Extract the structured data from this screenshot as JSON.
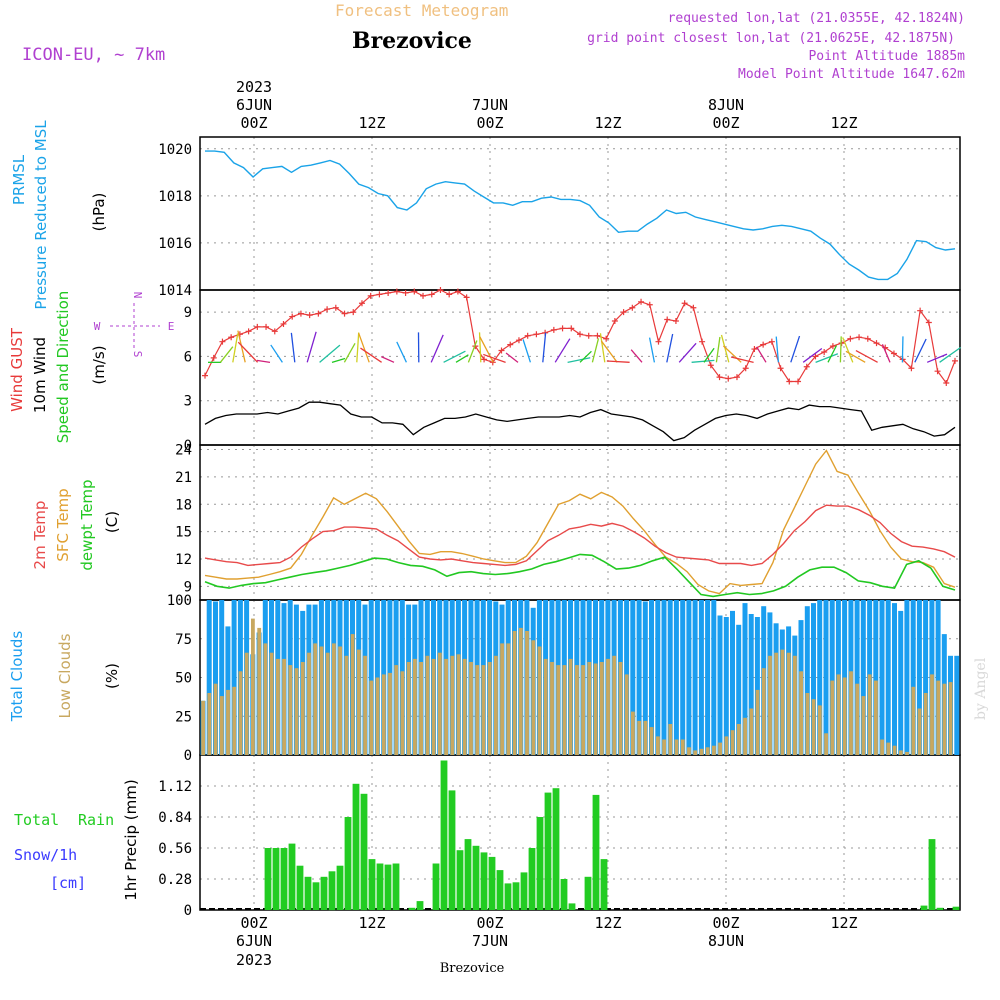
{
  "header": {
    "subtitle_top": "Forecast Meteogram",
    "model": "ICON-EU, ~ 7km",
    "location": "Brezovice",
    "requested": "requested lon,lat (21.0355E, 42.1824N)",
    "gridpoint": "grid point closest lon,lat (21.0625E, 42.1875N)",
    "point_alt": "Point Altitude 1885m",
    "model_alt": "Model Point Altitude 1647.62m",
    "watermark": "by Angel",
    "bottom_label": "Brezovice"
  },
  "time_axis": {
    "year": "2023",
    "top_days": [
      "6JUN",
      "7JUN",
      "8JUN"
    ],
    "hour_labels": [
      "00Z",
      "12Z",
      "00Z",
      "12Z",
      "00Z",
      "12Z"
    ],
    "bottom_days": [
      "6JUN",
      "7JUN",
      "8JUN"
    ]
  },
  "colors": {
    "pressure": "#1aa3e8",
    "gust": "#e83a3a",
    "wind": "#000000",
    "temp2m": "#e84a4a",
    "sfc": "#e0a030",
    "dewpt": "#22c822",
    "total_clouds": "#1a9ef0",
    "low_clouds": "#c8a860",
    "rain": "#22cc22",
    "snow": "#3a3aff",
    "title_orange": "#f0c080",
    "purple": "#b040d0"
  },
  "panel_labels": {
    "prmsl_a": "PRMSL",
    "prmsl_b": "Pressure Reduced to MSL",
    "prmsl_unit": "(hPa)",
    "wind_a": "Wind GUST",
    "wind_b": "10m Wind",
    "wind_c": "Speed and Direction",
    "wind_unit": "(m/s)",
    "compass_n": "N",
    "compass_s": "S",
    "compass_w": "W",
    "compass_e": "E",
    "temp_a": "2m Temp",
    "temp_b": "SFC Temp",
    "temp_c": "dewpt Temp",
    "temp_unit": "(C)",
    "cloud_a": "Total Clouds",
    "cloud_b": "Low Clouds",
    "cloud_unit": "(%)",
    "rain_a": "Total",
    "rain_b": "Rain",
    "rain_c": "Snow/1h",
    "rain_d": "[cm]",
    "rain_unit": "1hr Precip (mm)"
  },
  "chart_data": [
    {
      "type": "line",
      "name": "prmsl",
      "ylim": [
        1014,
        1020.5
      ],
      "yticks": [
        "1014",
        "1016",
        "1018",
        "1020"
      ],
      "series": [
        {
          "values": [
            1019.9,
            1019.9,
            1019.85,
            1019.4,
            1019.2,
            1018.8,
            1019.15,
            1019.2,
            1019.25,
            1019.0,
            1019.25,
            1019.3,
            1019.4,
            1019.5,
            1019.35,
            1018.95,
            1018.5,
            1018.35,
            1018.1,
            1018.0,
            1017.5,
            1017.4,
            1017.7,
            1018.3,
            1018.5,
            1018.6,
            1018.55,
            1018.5,
            1018.2,
            1017.95,
            1017.7,
            1017.7,
            1017.6,
            1017.75,
            1017.75,
            1017.9,
            1017.95,
            1017.85,
            1017.85,
            1017.8,
            1017.6,
            1017.1,
            1016.85,
            1016.45,
            1016.5,
            1016.5,
            1016.8,
            1017.05,
            1017.4,
            1017.25,
            1017.3,
            1017.1,
            1017.0,
            1016.9,
            1016.8,
            1016.7,
            1016.6,
            1016.55,
            1016.6,
            1016.7,
            1016.75,
            1016.7,
            1016.6,
            1016.5,
            1016.2,
            1015.95,
            1015.5,
            1015.1,
            1014.85,
            1014.55,
            1014.45,
            1014.45,
            1014.7,
            1015.3,
            1016.1,
            1016.05,
            1015.8,
            1015.7,
            1015.75
          ]
        }
      ]
    },
    {
      "type": "line",
      "name": "wind",
      "ylim": [
        0,
        10.5
      ],
      "yticks": [
        "0",
        "3",
        "6",
        "9"
      ],
      "series": [
        {
          "name": "Wind GUST",
          "values": [
            4.7,
            5.9,
            7.0,
            7.3,
            7.5,
            7.7,
            8.0,
            8.0,
            7.7,
            8.2,
            8.7,
            8.9,
            8.8,
            8.9,
            9.2,
            9.3,
            8.9,
            9.0,
            9.6,
            10.1,
            10.2,
            10.3,
            10.4,
            10.3,
            10.4,
            10.1,
            10.2,
            10.5,
            10.2,
            10.4,
            10.0,
            6.7,
            5.8,
            5.6,
            6.4,
            6.8,
            7.1,
            7.4,
            7.5,
            7.6,
            7.8,
            7.9,
            7.9,
            7.5,
            7.4,
            7.4,
            7.2,
            8.4,
            9.0,
            9.3,
            9.7,
            9.5,
            7.0,
            8.5,
            8.4,
            9.6,
            9.3,
            7.0,
            5.4,
            4.6,
            4.5,
            4.6,
            5.2,
            6.5,
            6.8,
            7.0,
            5.2,
            4.3,
            4.3,
            5.3,
            6.0,
            6.3,
            6.7,
            6.9,
            7.2,
            7.3,
            7.2,
            6.9,
            6.6,
            6.2,
            5.8,
            5.2,
            9.1,
            8.3,
            5.0,
            4.2,
            5.7
          ]
        },
        {
          "name": "10m Wind",
          "values": [
            1.4,
            1.8,
            2.0,
            2.1,
            2.1,
            2.1,
            2.2,
            2.1,
            2.3,
            2.5,
            2.9,
            2.9,
            2.8,
            2.7,
            2.1,
            1.9,
            1.9,
            1.5,
            1.5,
            1.4,
            0.7,
            1.2,
            1.5,
            1.8,
            1.8,
            1.9,
            2.1,
            1.9,
            1.7,
            1.6,
            1.7,
            1.8,
            1.9,
            1.9,
            1.9,
            2.0,
            1.9,
            2.2,
            2.4,
            2.1,
            2.0,
            1.9,
            1.7,
            1.3,
            0.9,
            0.3,
            0.5,
            1.0,
            1.4,
            1.8,
            2.0,
            2.1,
            2.0,
            1.8,
            2.1,
            2.3,
            2.5,
            2.4,
            2.7,
            2.6,
            2.6,
            2.5,
            2.4,
            2.3,
            1.0,
            1.2,
            1.3,
            1.4,
            1.1,
            0.9,
            0.6,
            0.7,
            1.2
          ]
        }
      ]
    },
    {
      "type": "line",
      "name": "temperature",
      "ylim": [
        7.5,
        24.5
      ],
      "yticks": [
        "9",
        "12",
        "15",
        "18",
        "21",
        "24"
      ],
      "series": [
        {
          "name": "2m Temp",
          "values": [
            12.1,
            11.9,
            11.7,
            11.6,
            11.3,
            11.4,
            11.5,
            11.6,
            12.2,
            13.3,
            14.2,
            15.0,
            15.1,
            15.5,
            15.5,
            15.4,
            15.3,
            14.6,
            14.0,
            13.1,
            12.2,
            12.0,
            11.9,
            12.0,
            11.8,
            11.6,
            11.5,
            11.4,
            11.3,
            11.4,
            11.8,
            12.9,
            14.0,
            14.6,
            15.3,
            15.5,
            15.8,
            15.6,
            15.9,
            15.6,
            15.0,
            14.3,
            13.4,
            12.7,
            12.2,
            12.1,
            12.0,
            11.9,
            11.5,
            11.5,
            11.5,
            11.3,
            11.5,
            12.5,
            13.7,
            15.1,
            16.1,
            17.3,
            17.9,
            17.8,
            17.8,
            17.4,
            16.8,
            16.0,
            14.8,
            13.9,
            13.4,
            13.3,
            13.1,
            12.8,
            12.2
          ]
        },
        {
          "name": "SFC Temp",
          "values": [
            10.2,
            10.0,
            9.8,
            9.8,
            9.9,
            10.0,
            10.3,
            10.6,
            11.0,
            12.5,
            14.6,
            16.6,
            18.7,
            18.0,
            18.6,
            19.2,
            18.6,
            17.2,
            15.6,
            14.0,
            12.6,
            12.5,
            12.8,
            12.8,
            12.6,
            12.3,
            12.0,
            11.8,
            11.6,
            11.6,
            12.3,
            13.8,
            15.9,
            18.0,
            18.4,
            19.1,
            18.6,
            19.3,
            18.8,
            17.8,
            16.4,
            15.1,
            13.6,
            12.2,
            11.5,
            10.6,
            9.2,
            8.5,
            8.2,
            9.3,
            9.1,
            9.2,
            9.3,
            11.6,
            15.2,
            17.6,
            20.0,
            22.4,
            23.9,
            21.6,
            21.2,
            19.2,
            17.3,
            15.1,
            13.3,
            12.0,
            11.7,
            11.6,
            11.1,
            9.3,
            8.9
          ]
        },
        {
          "name": "dewpt Temp",
          "values": [
            9.5,
            9.0,
            8.8,
            9.1,
            9.3,
            9.4,
            9.7,
            10.0,
            10.3,
            10.5,
            10.7,
            11.0,
            11.3,
            11.7,
            12.1,
            12.0,
            11.6,
            11.3,
            11.2,
            10.8,
            10.1,
            10.5,
            10.6,
            10.4,
            10.3,
            10.4,
            10.6,
            10.9,
            11.4,
            11.7,
            12.1,
            12.5,
            12.4,
            11.7,
            10.9,
            11.0,
            11.3,
            11.8,
            12.2,
            10.9,
            9.5,
            8.1,
            7.9,
            8.1,
            8.3,
            8.1,
            8.2,
            8.5,
            9.0,
            10.0,
            10.8,
            11.1,
            11.1,
            10.5,
            9.6,
            9.4,
            9.0,
            8.8,
            11.4,
            11.8,
            11.0,
            9.0,
            8.6
          ]
        }
      ]
    },
    {
      "type": "bar",
      "name": "clouds",
      "ylim": [
        0,
        100
      ],
      "yticks": [
        "0",
        "25",
        "50",
        "75",
        "100"
      ],
      "series": [
        {
          "name": "Total Clouds",
          "values": [
            35,
            100,
            99,
            100,
            83,
            100,
            100,
            100,
            65,
            79,
            100,
            100,
            100,
            98,
            100,
            97,
            93,
            97,
            97,
            100,
            100,
            100,
            100,
            100,
            100,
            100,
            97,
            100,
            100,
            100,
            100,
            100,
            100,
            97,
            97,
            100,
            100,
            100,
            100,
            100,
            100,
            100,
            100,
            100,
            100,
            100,
            100,
            99,
            97,
            100,
            100,
            100,
            100,
            95,
            100,
            100,
            100,
            100,
            100,
            100,
            100,
            100,
            100,
            100,
            100,
            100,
            100,
            100,
            100,
            100,
            100,
            99,
            100,
            100,
            100,
            100,
            100,
            100,
            100,
            100,
            100,
            100,
            100,
            90,
            89,
            93,
            84,
            98,
            91,
            89,
            96,
            92,
            85,
            81,
            83,
            77,
            87,
            96,
            98,
            100,
            100,
            100,
            100,
            100,
            100,
            100,
            100,
            100,
            100,
            100,
            100,
            98,
            93,
            100,
            100,
            100,
            100,
            100,
            100,
            78,
            64,
            64
          ]
        },
        {
          "name": "Low Clouds",
          "values": [
            35,
            40,
            46,
            38,
            42,
            44,
            54,
            66,
            88,
            82,
            72,
            66,
            62,
            62,
            58,
            56,
            60,
            66,
            72,
            70,
            66,
            72,
            70,
            64,
            78,
            68,
            64,
            48,
            50,
            52,
            53,
            58,
            54,
            60,
            62,
            60,
            64,
            62,
            66,
            62,
            64,
            65,
            62,
            60,
            58,
            58,
            60,
            64,
            72,
            72,
            80,
            82,
            80,
            74,
            70,
            62,
            60,
            58,
            58,
            62,
            58,
            58,
            60,
            59,
            60,
            62,
            64,
            60,
            52,
            28,
            22,
            22,
            18,
            12,
            10,
            20,
            10,
            10,
            5,
            3,
            4,
            5,
            6,
            8,
            12,
            16,
            20,
            24,
            30,
            42,
            56,
            64,
            66,
            68,
            66,
            64,
            54,
            40,
            36,
            32,
            14,
            48,
            52,
            50,
            54,
            46,
            38,
            52,
            48,
            10,
            8,
            6,
            3,
            2,
            44,
            30,
            40,
            52,
            48,
            46,
            47
          ]
        }
      ]
    },
    {
      "type": "bar",
      "name": "precipitation",
      "ylim": [
        0,
        1.4
      ],
      "yticks": [
        "0",
        "0.28",
        "0.56",
        "0.84",
        "1.12"
      ],
      "series": [
        {
          "name": "1hr Precip",
          "values": [
            0,
            0,
            0,
            0,
            0,
            0,
            0,
            0.0,
            0.56,
            0.56,
            0.56,
            0.6,
            0.4,
            0.3,
            0.25,
            0.3,
            0.35,
            0.4,
            0.84,
            1.14,
            1.05,
            0.46,
            0.42,
            0.41,
            0.42,
            0,
            0.02,
            0.08,
            0,
            0.42,
            1.35,
            1.08,
            0.54,
            0.64,
            0.58,
            0.52,
            0.48,
            0.36,
            0.24,
            0.25,
            0.34,
            0.56,
            0.84,
            1.06,
            1.1,
            0.28,
            0.06,
            0,
            0.3,
            1.04,
            0.46,
            0,
            0,
            0,
            0,
            0,
            0,
            0,
            0,
            0,
            0,
            0,
            0,
            0,
            0,
            0,
            0,
            0,
            0,
            0,
            0,
            0,
            0,
            0,
            0,
            0,
            0,
            0,
            0,
            0,
            0,
            0,
            0,
            0,
            0,
            0,
            0,
            0,
            0,
            0,
            0.04,
            0.64,
            0.02,
            0,
            0.03
          ]
        }
      ]
    }
  ]
}
